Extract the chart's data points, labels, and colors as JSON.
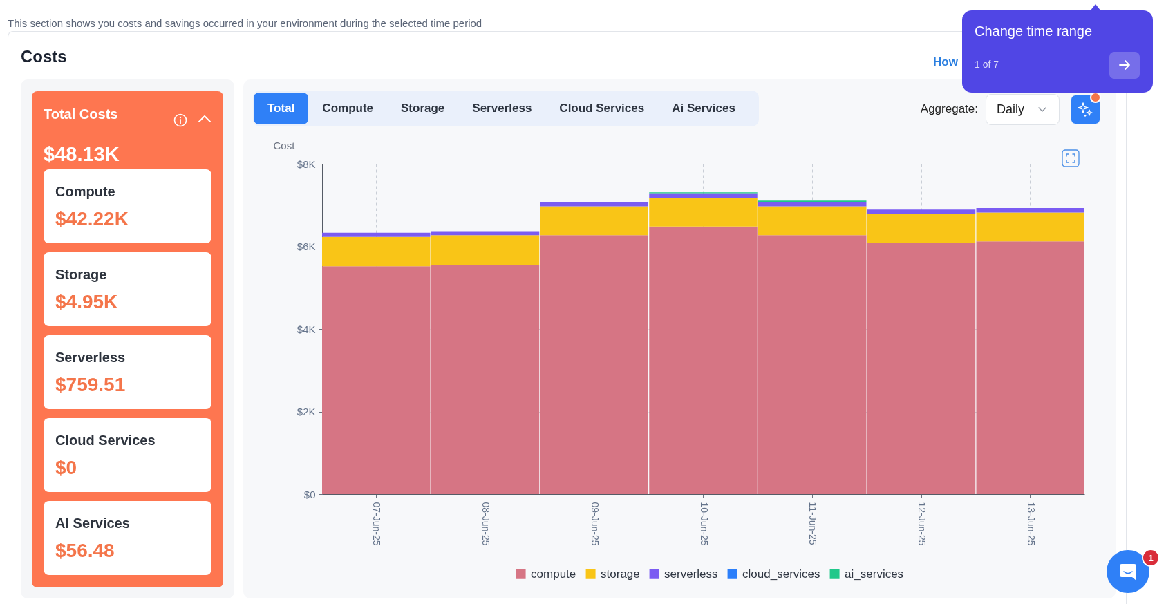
{
  "chart_data": [
    {
      "type": "other",
      "title": "Costs",
      "subtitle": "This section shows you costs and savings occurred in your environment during the selected time period",
      "annotations": [
        "How",
        "Change time range",
        "1 of 7"
      ]
    },
    {
      "type": "other",
      "title": "Total Costs",
      "annotations": [
        "$48.13K",
        "Compute",
        "$42.22K",
        "Storage",
        "$4.95K",
        "Serverless",
        "$759.51",
        "Cloud Services",
        "$0",
        "AI Services",
        "$56.48"
      ]
    },
    {
      "type": "bar",
      "stacked": true,
      "categories": [
        "07-Jun-25",
        "08-Jun-25",
        "09-Jun-25",
        "10-Jun-25",
        "11-Jun-25",
        "12-Jun-25",
        "13-Jun-25"
      ],
      "series": [
        {
          "name": "compute",
          "color": "#d67584",
          "values": [
            5520,
            5550,
            6270,
            6480,
            6270,
            6080,
            6120
          ]
        },
        {
          "name": "storage",
          "color": "#f9c517",
          "values": [
            710,
            720,
            700,
            690,
            700,
            700,
            700
          ]
        },
        {
          "name": "serverless",
          "color": "#7b5cf2",
          "values": [
            100,
            100,
            110,
            120,
            100,
            110,
            110
          ]
        },
        {
          "name": "cloud_services",
          "color": "#2c7ffa",
          "values": [
            null,
            null,
            null,
            null,
            null,
            null,
            null
          ]
        },
        {
          "name": "ai_services",
          "color": "#20c88a",
          "values": [
            null,
            null,
            null,
            20,
            40,
            null,
            null
          ]
        }
      ],
      "ylabel": "Cost",
      "ylim": [
        0,
        8000
      ],
      "yticks": [
        {
          "value": 0,
          "label": "$0"
        },
        {
          "value": 2000,
          "label": "$2K"
        },
        {
          "value": 4000,
          "label": "$4K"
        },
        {
          "value": 6000,
          "label": "$6K"
        },
        {
          "value": 8000,
          "label": "$8K"
        }
      ],
      "grid": true,
      "legend": "bottom",
      "annotations": [
        "Total",
        "Compute",
        "Storage",
        "Serverless",
        "Cloud Services",
        "Ai Services",
        "Aggregate:",
        "Daily",
        "1"
      ]
    }
  ]
}
